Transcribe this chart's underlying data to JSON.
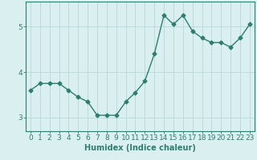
{
  "x": [
    0,
    1,
    2,
    3,
    4,
    5,
    6,
    7,
    8,
    9,
    10,
    11,
    12,
    13,
    14,
    15,
    16,
    17,
    18,
    19,
    20,
    21,
    22,
    23
  ],
  "y": [
    3.6,
    3.75,
    3.75,
    3.75,
    3.6,
    3.45,
    3.35,
    3.05,
    3.05,
    3.05,
    3.35,
    3.55,
    3.8,
    4.4,
    5.25,
    5.05,
    5.25,
    4.9,
    4.75,
    4.65,
    4.65,
    4.55,
    4.75,
    5.05
  ],
  "line_color": "#2e7d6e",
  "marker": "D",
  "marker_size": 2.5,
  "bg_color": "#daf0f0",
  "grid_color": "#b8d8d8",
  "axis_color": "#2e7d6e",
  "xlabel": "Humidex (Indice chaleur)",
  "ylim": [
    2.7,
    5.55
  ],
  "xlim": [
    -0.5,
    23.5
  ],
  "yticks": [
    3,
    4,
    5
  ],
  "xticks": [
    0,
    1,
    2,
    3,
    4,
    5,
    6,
    7,
    8,
    9,
    10,
    11,
    12,
    13,
    14,
    15,
    16,
    17,
    18,
    19,
    20,
    21,
    22,
    23
  ],
  "xlabel_fontsize": 7.0,
  "tick_fontsize": 6.5,
  "line_width": 1.0
}
